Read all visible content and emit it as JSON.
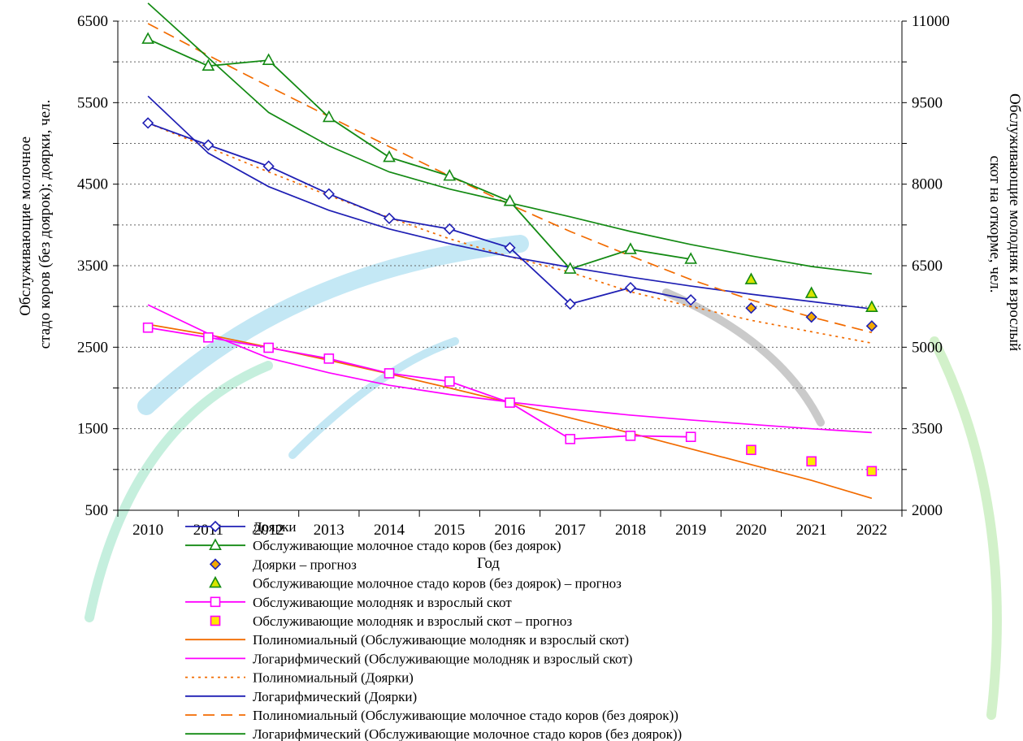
{
  "chart_data": {
    "type": "line",
    "xlabel": "Год",
    "ylabel_left": [
      "Обслуживающие молочное",
      "стадо коров (без доярок); доярки, чел."
    ],
    "ylabel_right": [
      "Обслуживающие молодняк и взрослый",
      "скот на откорме, чел."
    ],
    "x_ticks": [
      "2010",
      "2011",
      "2012",
      "2013",
      "2014",
      "2015",
      "2016",
      "2017",
      "2018",
      "2019",
      "2020",
      "2021",
      "2022"
    ],
    "left_axis": {
      "min": 500,
      "max": 6500,
      "major": [
        500,
        1500,
        2500,
        3500,
        4500,
        5500,
        6500
      ],
      "minor_step": 500
    },
    "right_axis": {
      "min": 2000,
      "max": 11000,
      "major": [
        2000,
        3500,
        5000,
        6500,
        8000,
        9500,
        11000
      ]
    },
    "grid": "dotted horizontal",
    "legend_position": "bottom",
    "series": [
      {
        "name": "Доярки",
        "axis": "left",
        "kind": "line-marker",
        "marker": "diamond",
        "color": "#1f1fb4",
        "marker_fill": "#ffffff",
        "x": [
          2010,
          2011,
          2012,
          2013,
          2014,
          2015,
          2016,
          2017,
          2018,
          2019
        ],
        "y": [
          5250,
          4980,
          4720,
          4380,
          4080,
          3950,
          3720,
          3030,
          3230,
          3080
        ]
      },
      {
        "name": "Обслуживающие молочное стадо коров (без доярок)",
        "axis": "left",
        "kind": "line-marker",
        "marker": "triangle",
        "color": "#138a13",
        "marker_fill": "#ffffff",
        "x": [
          2010,
          2011,
          2012,
          2013,
          2014,
          2015,
          2016,
          2017,
          2018,
          2019
        ],
        "y": [
          6280,
          5950,
          6020,
          5320,
          4830,
          4600,
          4290,
          3460,
          3700,
          3580
        ]
      },
      {
        "name": "Доярки – прогноз",
        "axis": "left",
        "kind": "marker",
        "marker": "diamond",
        "color": "#1f1fb4",
        "marker_fill": "#f2a900",
        "x": [
          2020,
          2021,
          2022
        ],
        "y": [
          2980,
          2870,
          2760
        ]
      },
      {
        "name": "Обслуживающие молочное стадо коров (без доярок) – прогноз",
        "axis": "left",
        "kind": "marker",
        "marker": "triangle",
        "color": "#138a13",
        "marker_fill": "#d8e400",
        "x": [
          2020,
          2021,
          2022
        ],
        "y": [
          3330,
          3160,
          2990
        ]
      },
      {
        "name": "Обслуживающие молодняк и взрослый скот",
        "axis": "right",
        "kind": "line-marker",
        "marker": "square",
        "color": "#ff00ff",
        "marker_fill": "#ffffff",
        "x": [
          2010,
          2011,
          2012,
          2013,
          2014,
          2015,
          2016,
          2017,
          2018,
          2019
        ],
        "y": [
          5360,
          5180,
          4990,
          4790,
          4520,
          4370,
          3980,
          3310,
          3370,
          3350
        ]
      },
      {
        "name": "Обслуживающие молодняк и взрослый скот – прогноз",
        "axis": "right",
        "kind": "marker",
        "marker": "square",
        "color": "#ff00ff",
        "marker_fill": "#ffe800",
        "x": [
          2020,
          2021,
          2022
        ],
        "y": [
          3110,
          2900,
          2720
        ]
      },
      {
        "name": "Полиномиальный (Обслуживающие молодняк и взрослый скот)",
        "axis": "right",
        "kind": "trend",
        "style": "solid",
        "color": "#f26b00",
        "x": [
          2010,
          2011,
          2012,
          2013,
          2014,
          2015,
          2016,
          2017,
          2018,
          2019,
          2020,
          2021,
          2022
        ],
        "y": [
          5420,
          5230,
          5000,
          4760,
          4510,
          4250,
          3980,
          3700,
          3420,
          3130,
          2840,
          2550,
          2220
        ]
      },
      {
        "name": "Логарифмический (Обслуживающие молодняк и взрослый скот)",
        "axis": "right",
        "kind": "trend",
        "style": "solid",
        "color": "#ff00ff",
        "x": [
          2010,
          2011,
          2012,
          2013,
          2014,
          2015,
          2016,
          2017,
          2018,
          2019,
          2020,
          2021,
          2022
        ],
        "y": [
          5780,
          5250,
          4800,
          4530,
          4300,
          4130,
          3990,
          3860,
          3750,
          3660,
          3580,
          3500,
          3430
        ]
      },
      {
        "name": "Полиномиальный (Доярки)",
        "axis": "left",
        "kind": "trend",
        "style": "dotted",
        "color": "#f26b00",
        "x": [
          2010,
          2011,
          2012,
          2013,
          2014,
          2015,
          2016,
          2017,
          2018,
          2019,
          2020,
          2021,
          2022
        ],
        "y": [
          5250,
          4950,
          4650,
          4360,
          4090,
          3830,
          3610,
          3420,
          3180,
          3000,
          2830,
          2690,
          2550
        ]
      },
      {
        "name": "Логарифмический (Доярки)",
        "axis": "left",
        "kind": "trend",
        "style": "solid",
        "color": "#1f1fb4",
        "x": [
          2010,
          2011,
          2012,
          2013,
          2014,
          2015,
          2016,
          2017,
          2018,
          2019,
          2020,
          2021,
          2022
        ],
        "y": [
          5580,
          4880,
          4470,
          4180,
          3950,
          3770,
          3610,
          3480,
          3360,
          3250,
          3150,
          3060,
          2970
        ]
      },
      {
        "name": "Полиномиальный (Обслуживающие молочное стадо коров (без доярок))",
        "axis": "left",
        "kind": "trend",
        "style": "dashed",
        "color": "#f26b00",
        "x": [
          2010,
          2011,
          2012,
          2013,
          2014,
          2015,
          2016,
          2017,
          2018,
          2019,
          2020,
          2021,
          2022
        ],
        "y": [
          6470,
          6080,
          5700,
          5330,
          4960,
          4600,
          4250,
          3920,
          3620,
          3330,
          3080,
          2870,
          2680
        ]
      },
      {
        "name": "Логарифмический (Обслуживающие молочное стадо коров (без доярок))",
        "axis": "left",
        "kind": "trend",
        "style": "solid",
        "color": "#138a13",
        "x": [
          2010,
          2011,
          2012,
          2013,
          2014,
          2015,
          2016,
          2017,
          2018,
          2019,
          2020,
          2021,
          2022
        ],
        "y": [
          6720,
          6050,
          5380,
          4970,
          4650,
          4440,
          4270,
          4100,
          3920,
          3760,
          3620,
          3490,
          3400
        ]
      }
    ]
  }
}
